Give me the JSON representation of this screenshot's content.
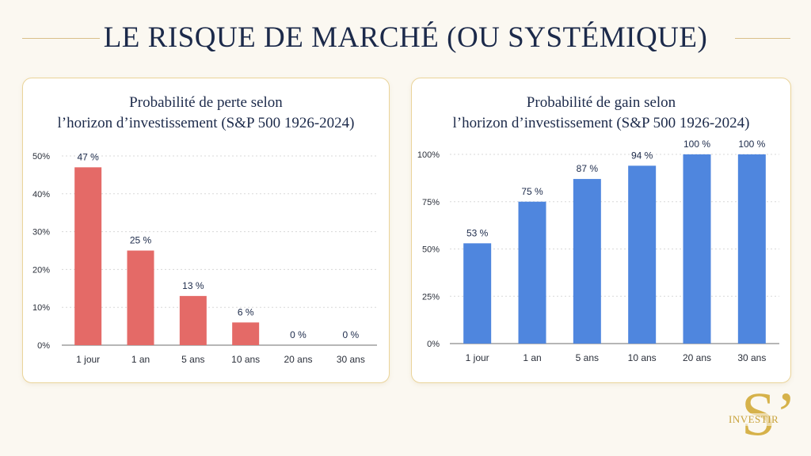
{
  "page": {
    "title": "LE RISQUE DE MARCHÉ (OU SYSTÉMIQUE)",
    "logo_text": "INVESTIR",
    "logo_mark": "S’"
  },
  "chart_data": [
    {
      "type": "bar",
      "title_lines": [
        "Probabilité de perte selon",
        "l’horizon d’investissement (S&P 500 1926-2024)"
      ],
      "categories": [
        "1 jour",
        "1 an",
        "5 ans",
        "10 ans",
        "20 ans",
        "30 ans"
      ],
      "values": [
        47,
        25,
        13,
        6,
        0,
        0
      ],
      "data_labels": [
        "47 %",
        "25 %",
        "13 %",
        "6 %",
        "0 %",
        "0 %"
      ],
      "yticks": [
        0,
        10,
        20,
        30,
        40,
        50
      ],
      "ytick_labels": [
        "0%",
        "10%",
        "20%",
        "30%",
        "40%",
        "50%"
      ],
      "ylim": [
        0,
        50
      ],
      "color": "#e46a67",
      "grid": true,
      "xlabel": "",
      "ylabel": ""
    },
    {
      "type": "bar",
      "title_lines": [
        "Probabilité de gain selon",
        "l’horizon d’investissement (S&P 500 1926-2024)"
      ],
      "categories": [
        "1 jour",
        "1 an",
        "5 ans",
        "10 ans",
        "20 ans",
        "30 ans"
      ],
      "values": [
        53,
        75,
        87,
        94,
        100,
        100
      ],
      "data_labels": [
        "53 %",
        "75 %",
        "87 %",
        "94 %",
        "100 %",
        "100 %"
      ],
      "yticks": [
        0,
        25,
        50,
        75,
        100
      ],
      "ytick_labels": [
        "0%",
        "25%",
        "50%",
        "75%",
        "100%"
      ],
      "ylim": [
        0,
        100
      ],
      "color": "#4f86de",
      "grid": true,
      "xlabel": "",
      "ylabel": ""
    }
  ]
}
